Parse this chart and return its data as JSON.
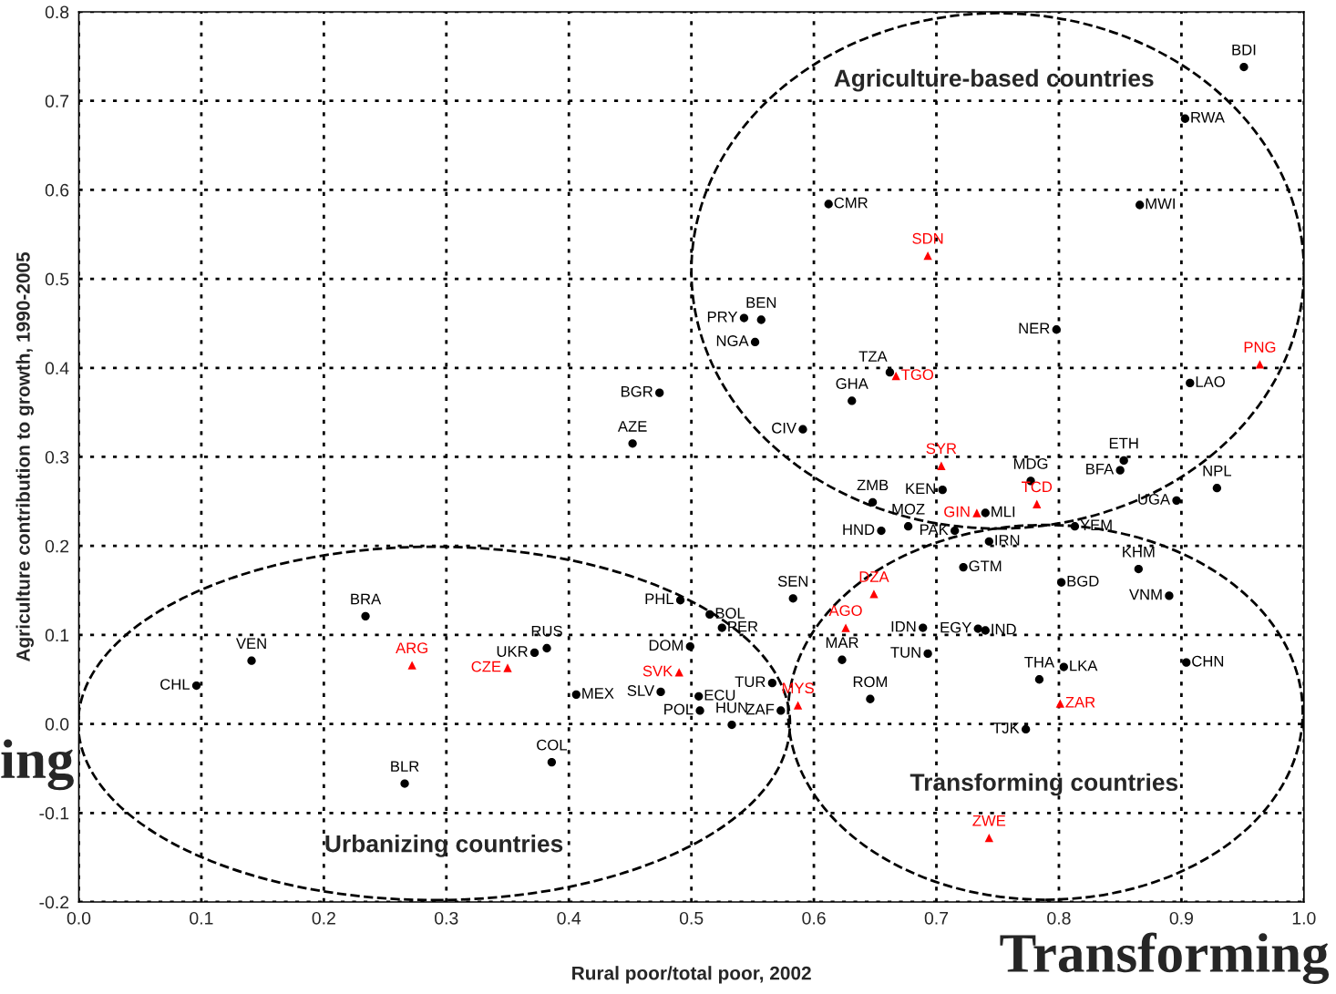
{
  "chart_data": {
    "type": "scatter",
    "xlabel": "Rural poor/total poor, 2002",
    "ylabel": "Agriculture contribution to growth, 1990-2005",
    "xlim": [
      0.0,
      1.0
    ],
    "ylim": [
      -0.2,
      0.8
    ],
    "xticks": [
      {
        "value": 0.0,
        "label": "0.0"
      },
      0.1,
      0.2,
      0.3,
      0.4,
      0.5,
      0.6,
      0.7,
      0.8,
      0.9,
      {
        "value": 1.0,
        "label": "1.0"
      }
    ],
    "yticks": [
      -0.2,
      -0.1,
      {
        "value": 0.0,
        "label": "0.0"
      },
      0.1,
      0.2,
      0.3,
      0.4,
      0.5,
      0.6,
      0.7,
      0.8
    ],
    "grid": true,
    "series": [
      {
        "color": "#000000",
        "marker": "circle",
        "x": [
          0.951,
          0.903,
          0.866,
          0.612,
          0.543,
          0.557,
          0.552,
          0.798,
          0.907,
          0.662,
          0.631,
          0.474,
          0.452,
          0.591,
          0.853,
          0.85,
          0.777,
          0.929,
          0.705,
          0.896,
          0.74,
          0.648,
          0.677,
          0.655,
          0.715,
          0.813,
          0.743,
          0.865,
          0.722,
          0.802,
          0.89,
          0.583,
          0.491,
          0.515,
          0.525,
          0.234,
          0.382,
          0.372,
          0.499,
          0.689,
          0.734,
          0.74,
          0.623,
          0.693,
          0.904,
          0.804,
          0.784,
          0.141,
          0.096,
          0.406,
          0.475,
          0.506,
          0.566,
          0.573,
          0.507,
          0.533,
          0.646,
          0.773,
          0.386,
          0.266
        ],
        "values": [
          0.738,
          0.68,
          0.583,
          0.584,
          0.456,
          0.454,
          0.429,
          0.443,
          0.383,
          0.395,
          0.363,
          0.372,
          0.315,
          0.331,
          0.296,
          0.285,
          0.273,
          0.265,
          0.263,
          0.251,
          0.237,
          0.249,
          0.222,
          0.217,
          0.217,
          0.222,
          0.205,
          0.174,
          0.176,
          0.159,
          0.144,
          0.141,
          0.139,
          0.123,
          0.108,
          0.121,
          0.085,
          0.08,
          0.087,
          0.108,
          0.107,
          0.105,
          0.072,
          0.079,
          0.069,
          0.064,
          0.05,
          0.071,
          0.043,
          0.033,
          0.036,
          0.031,
          0.046,
          0.015,
          0.015,
          -0.001,
          0.028,
          -0.006,
          -0.043,
          -0.067
        ],
        "value_labels": [
          "BDI",
          "RWA",
          "MWI",
          "CMR",
          "PRY",
          "BEN",
          "NGA",
          "NER",
          "LAO",
          "TZA",
          "GHA",
          "BGR",
          "AZE",
          "CIV",
          "ETH",
          "BFA",
          "MDG",
          "NPL",
          "KEN",
          "UGA",
          "MLI",
          "ZMB",
          "MOZ",
          "HND",
          "PAK",
          "YEM",
          "IRN",
          "KHM",
          "GTM",
          "BGD",
          "VNM",
          "SEN",
          "PHL",
          "BOL",
          "PER",
          "BRA",
          "RUS",
          "UKR",
          "DOM",
          "IDN",
          "EGY",
          "IND",
          "MAR",
          "TUN",
          "CHN",
          "LKA",
          "THA",
          "VEN",
          "CHL",
          "MEX",
          "SLV",
          "ECU",
          "TUR",
          "ZAF",
          "POL",
          "HUN",
          "ROM",
          "TJK",
          "COL",
          "BLR"
        ]
      },
      {
        "color": "#ff0000",
        "marker": "triangle",
        "x": [
          0.693,
          0.964,
          0.667,
          0.704,
          0.733,
          0.782,
          0.649,
          0.626,
          0.272,
          0.35,
          0.49,
          0.587,
          0.801,
          0.743
        ],
        "values": [
          0.526,
          0.404,
          0.391,
          0.29,
          0.237,
          0.247,
          0.146,
          0.108,
          0.066,
          0.063,
          0.058,
          0.021,
          0.023,
          -0.128
        ],
        "value_labels": [
          "SDN",
          "PNG",
          "TGO",
          "SYR",
          "GIN",
          "TCD",
          "DZA",
          "AGO",
          "ARG",
          "CZE",
          "SVK",
          "MYS",
          "ZAR",
          "ZWE"
        ]
      }
    ],
    "annotations": [
      "Agriculture-based countries",
      "Transforming countries",
      "Urbanizing countries",
      "ing",
      "Transforming"
    ]
  }
}
